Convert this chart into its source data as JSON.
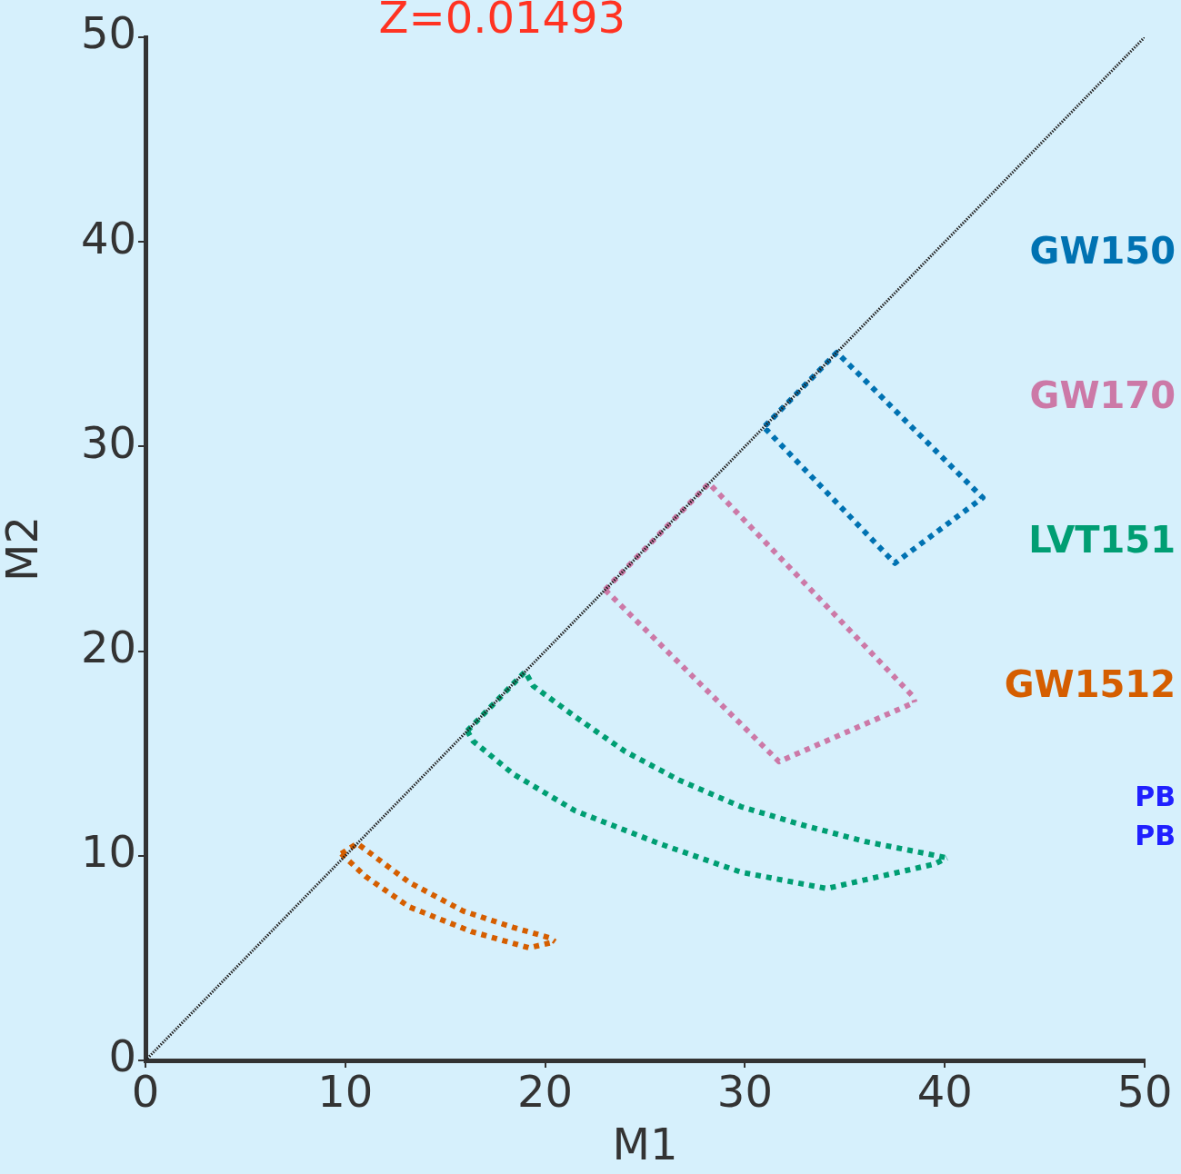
{
  "chart_data": {
    "type": "line",
    "title": "Z=0.01493",
    "xlabel": "M1",
    "ylabel": "M2",
    "xlim": [
      0,
      50
    ],
    "ylim": [
      0,
      50
    ],
    "xticks": [
      0,
      10,
      20,
      30,
      40,
      50
    ],
    "yticks": [
      0,
      10,
      20,
      30,
      40,
      50
    ],
    "grid": false,
    "line_style": "dotted",
    "series": [
      {
        "color": "#222222",
        "x": [
          0,
          50
        ],
        "values": [
          0,
          50
        ]
      },
      {
        "name": "GW150",
        "color": "#0072b2",
        "x": [
          31,
          34.6,
          41.9,
          37.5,
          30.9
        ],
        "values": [
          31,
          34.6,
          27.5,
          24.3,
          31.0
        ]
      },
      {
        "name": "GW170",
        "color": "#cc79a7",
        "x": [
          23.0,
          28.2,
          38.4,
          38.5
        ],
        "values": [
          23.0,
          28.2,
          17.8,
          17.5
        ]
      },
      {
        "color": "#cc79a7",
        "x": [
          23.0,
          31.7,
          38.5
        ],
        "values": [
          23.0,
          14.6,
          17.5
        ]
      },
      {
        "name": "LVT151",
        "color": "#009e73",
        "x": [
          16.1,
          19.0,
          19.4,
          21.5,
          24.0,
          26.7,
          29.8,
          32.9,
          36.0,
          39.1,
          40.1
        ],
        "values": [
          16.1,
          19.0,
          18.3,
          16.8,
          15.1,
          13.7,
          12.4,
          11.5,
          10.7,
          10.1,
          9.9
        ]
      },
      {
        "color": "#009e73",
        "x": [
          16.1,
          16.4,
          18.4,
          21.5,
          25.7,
          29.8,
          34.1,
          39.5,
          40.1
        ],
        "values": [
          16.1,
          15.6,
          14.0,
          12.2,
          10.6,
          9.2,
          8.4,
          9.6,
          9.9
        ]
      },
      {
        "name": "GW1512",
        "color": "#d55e00",
        "x": [
          9.8,
          10.6,
          13.2,
          15.9,
          18.4,
          20.2,
          20.5
        ],
        "values": [
          10.1,
          10.6,
          8.7,
          7.3,
          6.5,
          6.0,
          5.8
        ]
      },
      {
        "color": "#d55e00",
        "x": [
          9.8,
          11.0,
          13.2,
          16.3,
          19.2,
          20.5
        ],
        "values": [
          10.1,
          9.0,
          7.5,
          6.3,
          5.5,
          5.8
        ]
      }
    ],
    "annotations": [
      "PB",
      "PB"
    ]
  }
}
